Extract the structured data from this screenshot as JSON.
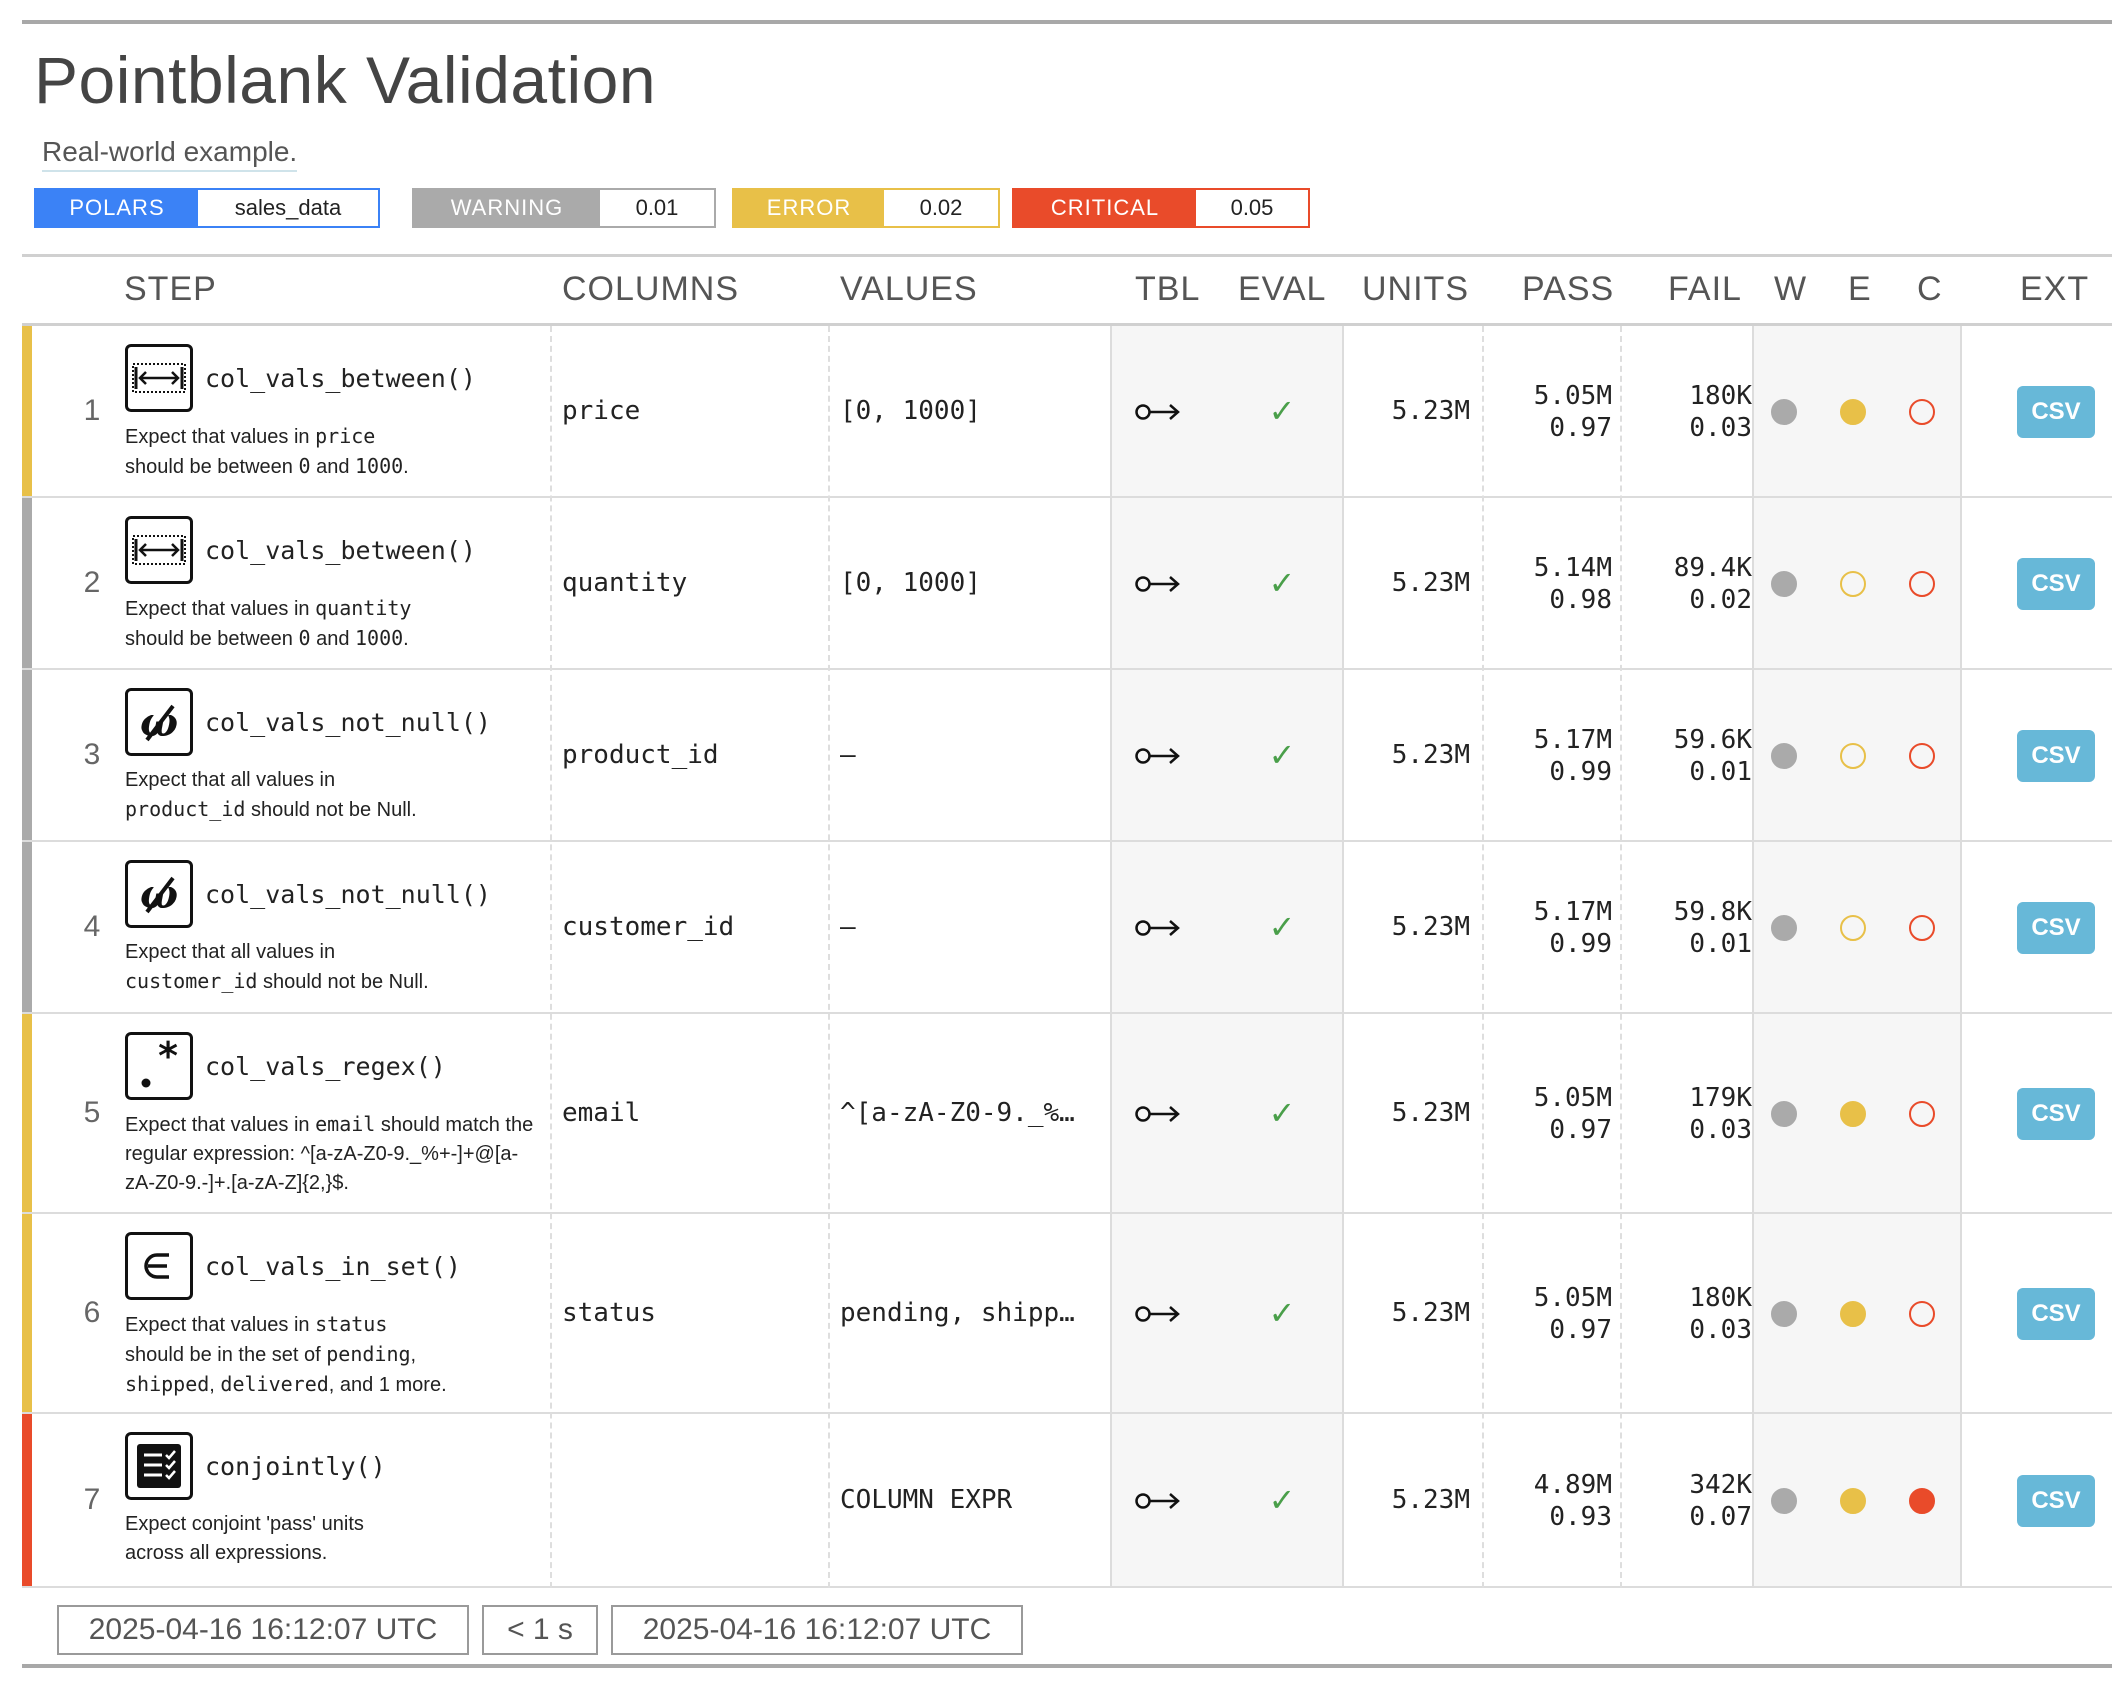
{
  "header": {
    "title": "Pointblank Validation",
    "subtitle": "Real-world example."
  },
  "badges": {
    "engine": {
      "label": "POLARS",
      "value": "sales_data",
      "color": "#3b82f6"
    },
    "warning": {
      "label": "WARNING",
      "value": "0.01",
      "color": "#aaaaaa"
    },
    "error": {
      "label": "ERROR",
      "value": "0.02",
      "color": "#e8c048"
    },
    "critical": {
      "label": "CRITICAL",
      "value": "0.05",
      "color": "#e94b2a"
    }
  },
  "columns": {
    "step": "STEP",
    "columns": "COLUMNS",
    "values": "VALUES",
    "tbl": "TBL",
    "eval": "EVAL",
    "units": "UNITS",
    "pass": "PASS",
    "fail": "FAIL",
    "w": "W",
    "e": "E",
    "c": "C",
    "ext": "EXT"
  },
  "rows": [
    {
      "num": "1",
      "fn": "col_vals_between()",
      "icon": "between-icon",
      "status_color": "#e8c048",
      "brief": {
        "a": "Expect that values in ",
        "b": "price",
        "c": "should be between ",
        "d": "0",
        "e": " and ",
        "f": "1000",
        "g": "."
      },
      "column": "price",
      "values": "[0, 1000]",
      "tbl_icon": "o→",
      "eval": "✓",
      "units": "5.23M",
      "pass_n": "5.05M",
      "pass_f": "0.97",
      "fail_n": "180K",
      "fail_f": "0.03",
      "w": "filled",
      "e": "filled",
      "c": "open",
      "ext": "CSV"
    },
    {
      "num": "2",
      "fn": "col_vals_between()",
      "icon": "between-icon",
      "status_color": "#aaaaaa",
      "brief": {
        "a": "Expect that values in ",
        "b": "quantity",
        "c": "should be between ",
        "d": "0",
        "e": " and ",
        "f": "1000",
        "g": "."
      },
      "column": "quantity",
      "values": "[0, 1000]",
      "tbl_icon": "o→",
      "eval": "✓",
      "units": "5.23M",
      "pass_n": "5.14M",
      "pass_f": "0.98",
      "fail_n": "89.4K",
      "fail_f": "0.02",
      "w": "filled",
      "e": "open",
      "c": "open",
      "ext": "CSV"
    },
    {
      "num": "3",
      "fn": "col_vals_not_null()",
      "icon": "not-null-icon",
      "status_color": "#aaaaaa",
      "brief": {
        "a": "Expect that all values in",
        "b": "product_id",
        "c": " should not be Null."
      },
      "column": "product_id",
      "values": "—",
      "tbl_icon": "o→",
      "eval": "✓",
      "units": "5.23M",
      "pass_n": "5.17M",
      "pass_f": "0.99",
      "fail_n": "59.6K",
      "fail_f": "0.01",
      "w": "filled",
      "e": "open",
      "c": "open",
      "ext": "CSV"
    },
    {
      "num": "4",
      "fn": "col_vals_not_null()",
      "icon": "not-null-icon",
      "status_color": "#aaaaaa",
      "brief": {
        "a": "Expect that all values in",
        "b": "customer_id",
        "c": " should not be Null."
      },
      "column": "customer_id",
      "values": "—",
      "tbl_icon": "o→",
      "eval": "✓",
      "units": "5.23M",
      "pass_n": "5.17M",
      "pass_f": "0.99",
      "fail_n": "59.8K",
      "fail_f": "0.01",
      "w": "filled",
      "e": "open",
      "c": "open",
      "ext": "CSV"
    },
    {
      "num": "5",
      "fn": "col_vals_regex()",
      "icon": "regex-icon",
      "status_color": "#e8c048",
      "brief": {
        "a": "Expect that values in ",
        "b": "email",
        "c": " should match the regular expression: ^[a-zA-Z0-9._%+-]+@[a-zA-Z0-9.-]+.[a-zA-Z]{2,}$."
      },
      "column": "email",
      "values": "^[a-zA-Z0-9._%+…",
      "tbl_icon": "o→",
      "eval": "✓",
      "units": "5.23M",
      "pass_n": "5.05M",
      "pass_f": "0.97",
      "fail_n": "179K",
      "fail_f": "0.03",
      "w": "filled",
      "e": "filled",
      "c": "open",
      "ext": "CSV"
    },
    {
      "num": "6",
      "fn": "col_vals_in_set()",
      "icon": "in-set-icon",
      "status_color": "#e8c048",
      "brief": {
        "a": "Expect that values in ",
        "b": "status",
        "c": "should be in the set of ",
        "d": "pending",
        "e": ",",
        "f": "shipped",
        "g": ", ",
        "h": "delivered",
        "i": ", and 1 more."
      },
      "column": "status",
      "values": "pending, shippe…",
      "tbl_icon": "o→",
      "eval": "✓",
      "units": "5.23M",
      "pass_n": "5.05M",
      "pass_f": "0.97",
      "fail_n": "180K",
      "fail_f": "0.03",
      "w": "filled",
      "e": "filled",
      "c": "open",
      "ext": "CSV"
    },
    {
      "num": "7",
      "fn": "conjointly()",
      "icon": "conjointly-icon",
      "status_color": "#e94b2a",
      "brief": {
        "a": "Expect conjoint 'pass' units",
        "b": "across all expressions."
      },
      "column": "",
      "values": "COLUMN EXPR",
      "tbl_icon": "o→",
      "eval": "✓",
      "units": "5.23M",
      "pass_n": "4.89M",
      "pass_f": "0.93",
      "fail_n": "342K",
      "fail_f": "0.07",
      "w": "filled",
      "e": "filled",
      "c": "filled",
      "ext": "CSV"
    }
  ],
  "footer": {
    "start_time": "2025-04-16 16:12:07 UTC",
    "duration": "< 1 s",
    "end_time": "2025-04-16 16:12:07 UTC"
  },
  "colors": {
    "warning": "#aaaaaa",
    "error": "#e8c048",
    "critical": "#e94b2a",
    "csv": "#67b8d8",
    "pass_check": "#4a9f4a"
  }
}
